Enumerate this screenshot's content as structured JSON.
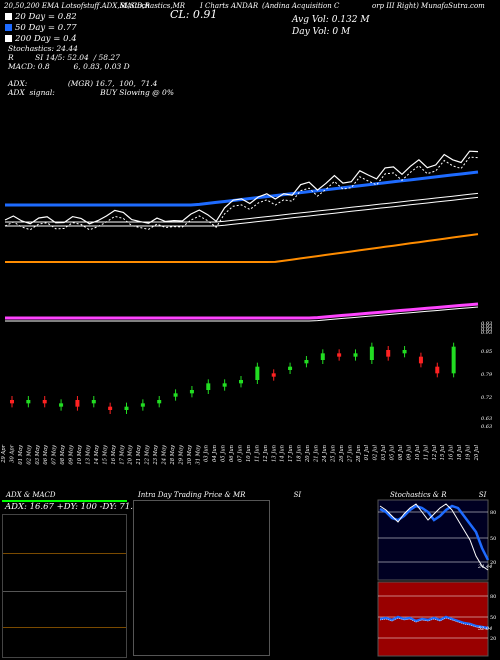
{
  "header": {
    "segments": [
      "20,50,200 EMA Lotsofstuff.ADX,MACD,R",
      "SI,Stochastics,MR",
      "CL: 0.91",
      "I Charts ANDAR",
      "(Andina Acquisition C",
      "orp III Right) MunafaSutra.com"
    ],
    "lines": [
      "20 Day = 0.82",
      "50 Day = 0.77",
      "200 Day = 0.4",
      "Stochastics: 24.44",
      "R         SI 14/5: 52.04  / 58.27",
      "MACD: 0.8          6, 0.83, 0.03 D",
      "ADX:                 (MGR) 16.7,  100,  71.4",
      "ADX  signal:                   BUY Slowing @ 0%"
    ],
    "avg_vol": "Avg Vol: 0.132  M",
    "day_vol": "Day Vol: 0   M",
    "legend": [
      {
        "label": "20 Day = 0.82",
        "color": "#ffffff"
      },
      {
        "label": "50 Day = 0.77",
        "color": "#1e6bff"
      },
      {
        "label": "200 Day = 0.4",
        "color": "#ffffff"
      }
    ]
  },
  "price_axis": [
    "0.93",
    "0.93",
    "0.93",
    "0.93",
    "0.85",
    "0.79",
    "0.72",
    "0.63",
    "0.63"
  ],
  "panels": {
    "adx": {
      "title": "ADX  & MACD",
      "readout": "ADX: 16.67  +DY: 100  -DY: 71.43"
    },
    "intraday": {
      "title": "Intra Day Trading Price  & MR",
      "title_suffix": "SI"
    },
    "stoch": {
      "title": "Stochastics & R",
      "title_suffix": "SI",
      "ticks_top": [
        "80",
        "50",
        "20"
      ],
      "ticks_bottom": [
        "80",
        "50",
        "20"
      ],
      "value_top": "24.44",
      "value_bottom": "52.04"
    }
  },
  "chart_data": {
    "type": "candlestick",
    "categories": [
      "29 Apr",
      "30 Apr",
      "01 May",
      "02 May",
      "03 May",
      "06 May",
      "07 May",
      "08 May",
      "09 May",
      "10 May",
      "13 May",
      "14 May",
      "15 May",
      "16 May",
      "17 May",
      "20 May",
      "21 May",
      "22 May",
      "23 May",
      "24 May",
      "28 May",
      "29 May",
      "30 May",
      "31 May",
      "03 Jun",
      "04 Jun",
      "05 Jun",
      "06 Jun",
      "07 Jun",
      "10 Jun",
      "11 Jun",
      "12 Jun",
      "13 Jun",
      "14 Jun",
      "17 Jun",
      "18 Jun",
      "20 Jun",
      "21 Jun",
      "24 Jun",
      "25 Jun",
      "26 Jun",
      "27 Jun",
      "28 Jun",
      "01 Jul",
      "02 Jul",
      "03 Jul",
      "05 Jul",
      "08 Jul",
      "09 Jul",
      "10 Jul",
      "11 Jul",
      "12 Jul",
      "15 Jul",
      "16 Jul",
      "18 Jul",
      "19 Jul",
      "20 Jul"
    ],
    "candles_visible": [
      {
        "o": 0.72,
        "c": 0.71
      },
      {
        "o": 0.71,
        "c": 0.72
      },
      {
        "o": 0.72,
        "c": 0.71
      },
      {
        "o": 0.7,
        "c": 0.71
      },
      {
        "o": 0.72,
        "c": 0.7
      },
      {
        "o": 0.71,
        "c": 0.72
      },
      {
        "o": 0.7,
        "c": 0.69
      },
      {
        "o": 0.69,
        "c": 0.7
      },
      {
        "o": 0.7,
        "c": 0.71
      },
      {
        "o": 0.71,
        "c": 0.72
      },
      {
        "o": 0.73,
        "c": 0.74
      },
      {
        "o": 0.74,
        "c": 0.75
      },
      {
        "o": 0.75,
        "c": 0.77
      },
      {
        "o": 0.76,
        "c": 0.77
      },
      {
        "o": 0.77,
        "c": 0.78
      },
      {
        "o": 0.78,
        "c": 0.82
      },
      {
        "o": 0.8,
        "c": 0.79
      },
      {
        "o": 0.81,
        "c": 0.82
      },
      {
        "o": 0.83,
        "c": 0.84
      },
      {
        "o": 0.84,
        "c": 0.86
      },
      {
        "o": 0.86,
        "c": 0.85
      },
      {
        "o": 0.85,
        "c": 0.86
      },
      {
        "o": 0.84,
        "c": 0.88
      },
      {
        "o": 0.87,
        "c": 0.85
      },
      {
        "o": 0.86,
        "c": 0.87
      },
      {
        "o": 0.85,
        "c": 0.83
      },
      {
        "o": 0.82,
        "c": 0.8
      },
      {
        "o": 0.8,
        "c": 0.88
      }
    ],
    "series": [
      {
        "values": "sma_short_white",
        "color": "#ffffff"
      },
      {
        "values": "sma_50_blue",
        "color": "#1e6bff"
      },
      {
        "values": "sma_white_double",
        "color": "#ffffff"
      },
      {
        "values": "sma_orange",
        "color": "#ff8c00"
      },
      {
        "values": "sma_magenta",
        "color": "#ff44ff"
      }
    ]
  }
}
